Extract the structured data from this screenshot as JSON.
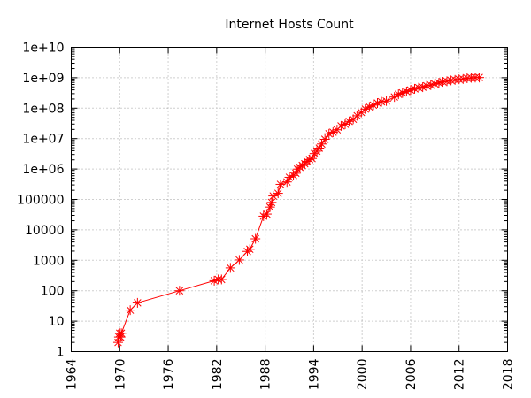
{
  "chart_data": {
    "type": "line",
    "title": "Internet Hosts Count",
    "xlabel": "",
    "ylabel": "",
    "x_scale": "linear",
    "y_scale": "log",
    "xlim": [
      1964,
      2018
    ],
    "ylim": [
      1,
      10000000000
    ],
    "x_ticks": [
      "1964",
      "1970",
      "1976",
      "1982",
      "1988",
      "1994",
      "2000",
      "2006",
      "2012",
      "2018"
    ],
    "y_ticks": [
      "1",
      "10",
      "100",
      "1000",
      "10000",
      "100000",
      "1e+06",
      "1e+07",
      "1e+08",
      "1e+09",
      "1e+10"
    ],
    "grid": true,
    "legend": "none",
    "marker": "asterisk",
    "color": "#ff0000",
    "series": [
      {
        "x": [
          1969.8,
          1969.9,
          1970.0,
          1970.1,
          1970.2,
          1971.3,
          1972.2,
          1977.4,
          1981.7,
          1982.2,
          1982.6,
          1983.7,
          1984.8,
          1985.8,
          1986.1,
          1986.8,
          1987.8,
          1988.2,
          1988.6,
          1988.8,
          1989.0,
          1989.6,
          1989.9,
          1990.7,
          1991.0,
          1991.5,
          1991.8,
          1992.0,
          1992.3,
          1992.6,
          1992.9,
          1993.2,
          1993.5,
          1993.8,
          1994.1,
          1994.4,
          1994.7,
          1995.0,
          1995.4,
          1995.9,
          1996.4,
          1996.9,
          1997.4,
          1997.9,
          1998.4,
          1998.9,
          1999.4,
          1999.9,
          2000.4,
          2000.9,
          2001.4,
          2001.9,
          2002.4,
          2003.0,
          2004.0,
          2004.5,
          2005.0,
          2005.5,
          2006.0,
          2006.5,
          2007.0,
          2007.5,
          2008.0,
          2008.5,
          2009.0,
          2009.5,
          2010.0,
          2010.5,
          2011.0,
          2011.5,
          2012.0,
          2012.5,
          2013.0,
          2013.5,
          2014.0,
          2014.5
        ],
        "y": [
          2,
          3,
          4,
          3,
          4,
          23,
          40,
          100,
          213,
          235,
          235,
          562,
          1024,
          1961,
          2308,
          5089,
          28174,
          33000,
          56000,
          80000,
          130000,
          159000,
          313000,
          376000,
          535000,
          617000,
          727000,
          992000,
          1136000,
          1313000,
          1486000,
          1776000,
          2056000,
          2217000,
          3212000,
          3864000,
          4852000,
          6642000,
          9472000,
          14352000,
          16146000,
          19540000,
          26053000,
          29670000,
          36739000,
          43230000,
          56218000,
          72398000,
          93047000,
          109574000,
          125888000,
          147345000,
          162128000,
          171638000,
          233101000,
          285139000,
          317646000,
          353284000,
          394991000,
          433193000,
          472050000,
          489774000,
          541677000,
          570937000,
          625226000,
          681064000,
          732740000,
          768913000,
          818374000,
          849870000,
          888239000,
          908585000,
          963518000,
          996231000,
          1010251000,
          1015000000
        ]
      }
    ]
  }
}
